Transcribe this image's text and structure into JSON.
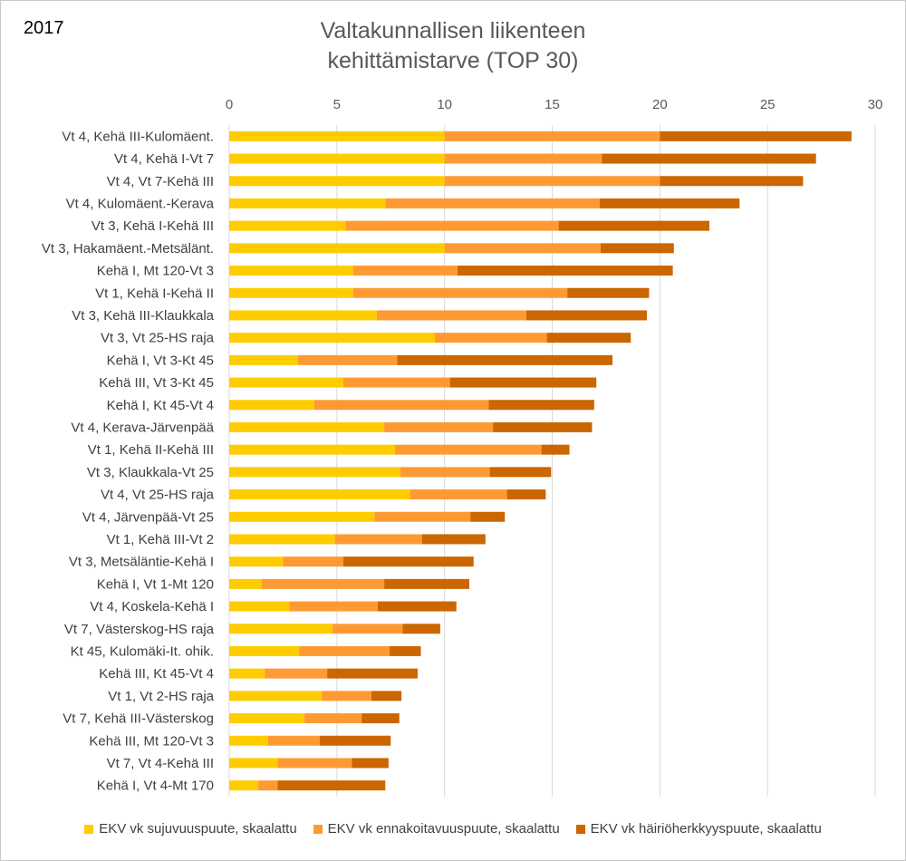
{
  "chart_data": {
    "type": "bar",
    "orientation": "horizontal",
    "stacked": true,
    "year_label": "2017",
    "title_lines": [
      "Valtakunnallisen liikenteen",
      "kehittämistarve (TOP 30)"
    ],
    "xlim": [
      0,
      30
    ],
    "xticks": [
      0,
      5,
      10,
      15,
      20,
      25,
      30
    ],
    "grid": "vertical",
    "legend_position": "bottom",
    "categories": [
      "Vt 4, Kehä III-Kulomäent.",
      "Vt 4, Kehä I-Vt 7",
      "Vt 4, Vt 7-Kehä III",
      "Vt 4, Kulomäent.-Kerava",
      "Vt 3, Kehä I-Kehä III",
      "Vt 3, Hakamäent.-Metsälänt.",
      "Kehä I, Mt 120-Vt 3",
      "Vt 1, Kehä I-Kehä II",
      "Vt 3, Kehä III-Klaukkala",
      "Vt 3, Vt 25-HS raja",
      "Kehä I, Vt 3-Kt 45",
      "Kehä III, Vt 3-Kt 45",
      "Kehä I, Kt 45-Vt 4",
      "Vt 4, Kerava-Järvenpää",
      "Vt 1, Kehä II-Kehä III",
      "Vt 3, Klaukkala-Vt 25",
      "Vt 4, Vt 25-HS raja",
      "Vt 4, Järvenpää-Vt 25",
      "Vt 1, Kehä III-Vt 2",
      "Vt 3, Metsäläntie-Kehä I",
      "Kehä I, Vt 1-Mt 120",
      "Vt 4, Koskela-Kehä I",
      "Vt 7, Västerskog-HS raja",
      "Kt 45, Kulomäki-It. ohik.",
      "Kehä III, Kt 45-Vt 4",
      "Vt 1, Vt 2-HS raja",
      "Vt 7, Kehä III-Västerskog",
      "Kehä III, Mt 120-Vt 3",
      "Vt 7, Vt 4-Kehä III",
      "Kehä I, Vt 4-Mt 170"
    ],
    "series": [
      {
        "name": "EKV vk sujuvuuspuute, skaalattu",
        "color": "#ffcc00",
        "values": [
          10.0,
          10.0,
          10.0,
          7.25,
          5.4,
          10.0,
          5.75,
          5.75,
          6.85,
          9.55,
          3.2,
          5.3,
          3.95,
          7.2,
          7.7,
          7.95,
          8.4,
          6.75,
          4.9,
          2.5,
          1.5,
          2.8,
          4.8,
          3.25,
          1.65,
          4.3,
          3.5,
          1.8,
          2.25,
          1.35
        ]
      },
      {
        "name": "EKV vk ennakoitavuuspuute, skaalattu",
        "color": "#ff9a33",
        "values": [
          10.0,
          7.3,
          10.0,
          9.95,
          9.9,
          7.25,
          4.85,
          9.95,
          6.95,
          5.2,
          4.6,
          4.95,
          8.1,
          5.05,
          6.8,
          4.15,
          4.5,
          4.45,
          4.05,
          2.8,
          5.7,
          4.1,
          3.25,
          4.2,
          2.9,
          2.3,
          2.65,
          2.4,
          3.45,
          0.9
        ]
      },
      {
        "name": "EKV vk häiriöherkkyyspuute, skaalattu",
        "color": "#cc6600",
        "values": [
          8.9,
          9.95,
          6.65,
          6.5,
          7.0,
          3.4,
          10.0,
          3.8,
          5.6,
          3.9,
          10.0,
          6.8,
          4.9,
          4.6,
          1.3,
          2.85,
          1.8,
          1.6,
          2.95,
          6.05,
          3.95,
          3.65,
          1.75,
          1.45,
          4.2,
          1.4,
          1.75,
          3.3,
          1.7,
          5.0
        ]
      }
    ]
  }
}
